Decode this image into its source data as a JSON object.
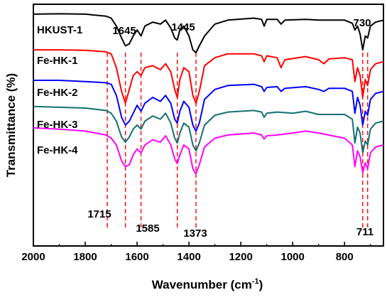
{
  "chart_data": {
    "type": "line",
    "title": "",
    "xlabel": "Wavenumber (cm⁻¹)",
    "xlabel_main": "Wavenumber (cm",
    "xlabel_sup": "-1",
    "xlabel_close": ")",
    "ylabel": "Transmittance (%)",
    "xlim": [
      2000,
      650
    ],
    "x_reversed": true,
    "ylim": [
      0,
      6.1
    ],
    "y_ticks_shown": false,
    "x_ticks": [
      2000,
      1800,
      1600,
      1400,
      1200,
      1000,
      800
    ],
    "x_tick_labels": [
      "2000",
      "1800",
      "1600",
      "1400",
      "1200",
      "1000",
      "800"
    ],
    "grid": false,
    "legend": "labels-inline-left",
    "peak_markers": [
      {
        "label": "1715",
        "x": 1715
      },
      {
        "label": "1645",
        "x": 1645
      },
      {
        "label": "1585",
        "x": 1585
      },
      {
        "label": "1445",
        "x": 1445
      },
      {
        "label": "1373",
        "x": 1373
      },
      {
        "label": "730",
        "x": 730
      },
      {
        "label": "711",
        "x": 711
      }
    ],
    "series": [
      {
        "name": "HKUST-1",
        "color": "#000000",
        "points": [
          [
            2000,
            5.85
          ],
          [
            1900,
            5.86
          ],
          [
            1800,
            5.85
          ],
          [
            1720,
            5.8
          ],
          [
            1700,
            5.75
          ],
          [
            1680,
            5.55
          ],
          [
            1660,
            5.25
          ],
          [
            1645,
            5.05
          ],
          [
            1630,
            5.1
          ],
          [
            1615,
            5.3
          ],
          [
            1600,
            5.45
          ],
          [
            1585,
            5.3
          ],
          [
            1570,
            5.55
          ],
          [
            1540,
            5.65
          ],
          [
            1510,
            5.6
          ],
          [
            1490,
            5.7
          ],
          [
            1470,
            5.5
          ],
          [
            1455,
            5.25
          ],
          [
            1445,
            5.2
          ],
          [
            1435,
            5.45
          ],
          [
            1420,
            5.55
          ],
          [
            1400,
            5.3
          ],
          [
            1385,
            4.95
          ],
          [
            1373,
            4.88
          ],
          [
            1360,
            5.05
          ],
          [
            1340,
            5.3
          ],
          [
            1300,
            5.6
          ],
          [
            1250,
            5.7
          ],
          [
            1150,
            5.75
          ],
          [
            1120,
            5.72
          ],
          [
            1110,
            5.55
          ],
          [
            1100,
            5.72
          ],
          [
            1060,
            5.72
          ],
          [
            1045,
            5.6
          ],
          [
            1030,
            5.7
          ],
          [
            950,
            5.72
          ],
          [
            900,
            5.7
          ],
          [
            800,
            5.7
          ],
          [
            770,
            5.62
          ],
          [
            760,
            5.45
          ],
          [
            750,
            5.55
          ],
          [
            740,
            5.35
          ],
          [
            730,
            4.95
          ],
          [
            720,
            5.3
          ],
          [
            711,
            5.25
          ],
          [
            700,
            5.55
          ],
          [
            680,
            5.65
          ],
          [
            650,
            5.7
          ]
        ]
      },
      {
        "name": "Fe-HK-1",
        "color": "#ff0000",
        "points": [
          [
            2000,
            4.95
          ],
          [
            1900,
            4.95
          ],
          [
            1800,
            4.94
          ],
          [
            1720,
            4.9
          ],
          [
            1700,
            4.85
          ],
          [
            1680,
            4.5
          ],
          [
            1660,
            3.9
          ],
          [
            1645,
            3.6
          ],
          [
            1630,
            3.95
          ],
          [
            1615,
            4.3
          ],
          [
            1600,
            4.4
          ],
          [
            1585,
            4.3
          ],
          [
            1570,
            4.5
          ],
          [
            1540,
            4.55
          ],
          [
            1510,
            4.45
          ],
          [
            1490,
            4.6
          ],
          [
            1470,
            4.4
          ],
          [
            1455,
            3.95
          ],
          [
            1445,
            3.75
          ],
          [
            1435,
            4.2
          ],
          [
            1420,
            4.5
          ],
          [
            1400,
            4.4
          ],
          [
            1385,
            3.8
          ],
          [
            1373,
            3.6
          ],
          [
            1360,
            3.9
          ],
          [
            1340,
            4.55
          ],
          [
            1300,
            4.75
          ],
          [
            1250,
            4.85
          ],
          [
            1150,
            4.85
          ],
          [
            1120,
            4.8
          ],
          [
            1110,
            4.65
          ],
          [
            1100,
            4.8
          ],
          [
            1060,
            4.75
          ],
          [
            1045,
            4.5
          ],
          [
            1030,
            4.7
          ],
          [
            950,
            4.78
          ],
          [
            900,
            4.7
          ],
          [
            880,
            4.6
          ],
          [
            860,
            4.72
          ],
          [
            800,
            4.75
          ],
          [
            770,
            4.7
          ],
          [
            760,
            4.15
          ],
          [
            750,
            4.5
          ],
          [
            740,
            4.3
          ],
          [
            730,
            3.75
          ],
          [
            720,
            4.2
          ],
          [
            711,
            4.05
          ],
          [
            700,
            4.45
          ],
          [
            680,
            4.6
          ],
          [
            650,
            4.65
          ]
        ]
      },
      {
        "name": "Fe-HK-2",
        "color": "#0000ff",
        "points": [
          [
            2000,
            4.18
          ],
          [
            1900,
            4.18
          ],
          [
            1800,
            4.15
          ],
          [
            1720,
            4.12
          ],
          [
            1700,
            4.08
          ],
          [
            1680,
            3.8
          ],
          [
            1660,
            3.25
          ],
          [
            1645,
            3.05
          ],
          [
            1630,
            3.15
          ],
          [
            1615,
            3.35
          ],
          [
            1600,
            3.55
          ],
          [
            1585,
            3.4
          ],
          [
            1570,
            3.6
          ],
          [
            1540,
            3.75
          ],
          [
            1510,
            3.65
          ],
          [
            1490,
            3.8
          ],
          [
            1470,
            3.6
          ],
          [
            1455,
            3.2
          ],
          [
            1445,
            3.1
          ],
          [
            1435,
            3.4
          ],
          [
            1420,
            3.65
          ],
          [
            1400,
            3.5
          ],
          [
            1385,
            3.05
          ],
          [
            1373,
            2.9
          ],
          [
            1360,
            3.1
          ],
          [
            1340,
            3.7
          ],
          [
            1300,
            3.95
          ],
          [
            1250,
            4.05
          ],
          [
            1150,
            4.08
          ],
          [
            1120,
            4.02
          ],
          [
            1110,
            3.9
          ],
          [
            1100,
            4.0
          ],
          [
            1060,
            4.02
          ],
          [
            1045,
            3.9
          ],
          [
            1030,
            3.98
          ],
          [
            950,
            4.02
          ],
          [
            900,
            3.95
          ],
          [
            880,
            3.9
          ],
          [
            860,
            3.98
          ],
          [
            800,
            3.98
          ],
          [
            770,
            3.9
          ],
          [
            760,
            3.35
          ],
          [
            750,
            3.75
          ],
          [
            740,
            3.55
          ],
          [
            730,
            3.05
          ],
          [
            720,
            3.4
          ],
          [
            711,
            3.3
          ],
          [
            700,
            3.7
          ],
          [
            680,
            3.85
          ],
          [
            650,
            3.9
          ]
        ]
      },
      {
        "name": "Fe-HK-3",
        "color": "#137070",
        "points": [
          [
            2000,
            3.52
          ],
          [
            1900,
            3.5
          ],
          [
            1800,
            3.48
          ],
          [
            1720,
            3.42
          ],
          [
            1700,
            3.35
          ],
          [
            1680,
            3.15
          ],
          [
            1660,
            2.75
          ],
          [
            1645,
            2.62
          ],
          [
            1630,
            2.75
          ],
          [
            1615,
            2.95
          ],
          [
            1600,
            3.05
          ],
          [
            1585,
            2.95
          ],
          [
            1570,
            3.15
          ],
          [
            1540,
            3.28
          ],
          [
            1510,
            3.2
          ],
          [
            1490,
            3.35
          ],
          [
            1470,
            3.1
          ],
          [
            1455,
            2.72
          ],
          [
            1445,
            2.6
          ],
          [
            1435,
            2.85
          ],
          [
            1420,
            3.1
          ],
          [
            1400,
            3.0
          ],
          [
            1385,
            2.55
          ],
          [
            1373,
            2.4
          ],
          [
            1360,
            2.6
          ],
          [
            1340,
            3.05
          ],
          [
            1300,
            3.3
          ],
          [
            1250,
            3.38
          ],
          [
            1150,
            3.42
          ],
          [
            1120,
            3.38
          ],
          [
            1110,
            3.25
          ],
          [
            1100,
            3.35
          ],
          [
            1060,
            3.38
          ],
          [
            1000,
            3.35
          ],
          [
            950,
            3.4
          ],
          [
            900,
            3.32
          ],
          [
            800,
            3.32
          ],
          [
            770,
            3.2
          ],
          [
            760,
            2.6
          ],
          [
            750,
            3.0
          ],
          [
            740,
            2.85
          ],
          [
            730,
            2.35
          ],
          [
            720,
            2.65
          ],
          [
            711,
            2.55
          ],
          [
            700,
            2.95
          ],
          [
            680,
            3.1
          ],
          [
            650,
            3.15
          ]
        ]
      },
      {
        "name": "Fe-HK-4",
        "color": "#ff00ff",
        "points": [
          [
            2000,
            2.98
          ],
          [
            1900,
            2.95
          ],
          [
            1800,
            2.9
          ],
          [
            1720,
            2.8
          ],
          [
            1700,
            2.72
          ],
          [
            1680,
            2.55
          ],
          [
            1660,
            2.15
          ],
          [
            1645,
            2.0
          ],
          [
            1630,
            2.05
          ],
          [
            1615,
            2.3
          ],
          [
            1600,
            2.45
          ],
          [
            1585,
            2.35
          ],
          [
            1570,
            2.55
          ],
          [
            1540,
            2.68
          ],
          [
            1510,
            2.62
          ],
          [
            1490,
            2.78
          ],
          [
            1470,
            2.55
          ],
          [
            1455,
            2.2
          ],
          [
            1445,
            2.08
          ],
          [
            1435,
            2.3
          ],
          [
            1420,
            2.55
          ],
          [
            1400,
            2.45
          ],
          [
            1385,
            1.95
          ],
          [
            1373,
            1.82
          ],
          [
            1360,
            2.05
          ],
          [
            1340,
            2.5
          ],
          [
            1300,
            2.72
          ],
          [
            1250,
            2.8
          ],
          [
            1150,
            2.85
          ],
          [
            1120,
            2.8
          ],
          [
            1110,
            2.7
          ],
          [
            1100,
            2.78
          ],
          [
            1060,
            2.8
          ],
          [
            1000,
            2.85
          ],
          [
            950,
            2.9
          ],
          [
            900,
            2.85
          ],
          [
            800,
            2.72
          ],
          [
            770,
            2.55
          ],
          [
            760,
            2.0
          ],
          [
            750,
            2.4
          ],
          [
            740,
            2.25
          ],
          [
            730,
            1.85
          ],
          [
            720,
            2.1
          ],
          [
            711,
            1.95
          ],
          [
            700,
            2.35
          ],
          [
            680,
            2.5
          ],
          [
            650,
            2.55
          ]
        ]
      }
    ]
  }
}
